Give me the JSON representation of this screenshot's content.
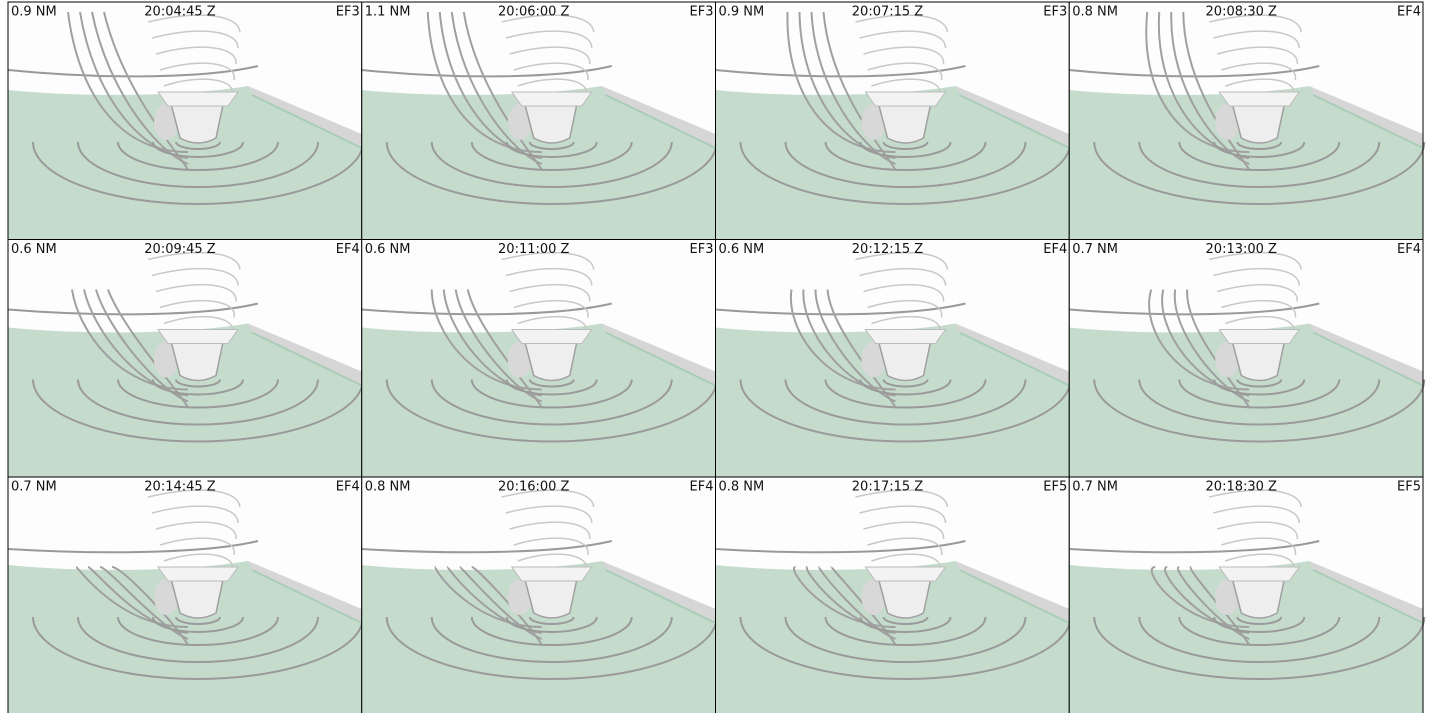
{
  "panels": [
    {
      "distance": "0.9 NM",
      "time": "20:04:45 Z",
      "rating": "EF3"
    },
    {
      "distance": "1.1 NM",
      "time": "20:06:00 Z",
      "rating": "EF3"
    },
    {
      "distance": "0.9 NM",
      "time": "20:07:15 Z",
      "rating": "EF3"
    },
    {
      "distance": "0.8 NM",
      "time": "20:08:30 Z",
      "rating": "EF4"
    },
    {
      "distance": "0.6 NM",
      "time": "20:09:45 Z",
      "rating": "EF4"
    },
    {
      "distance": "0.6 NM",
      "time": "20:11:00 Z",
      "rating": "EF3"
    },
    {
      "distance": "0.6 NM",
      "time": "20:12:15 Z",
      "rating": "EF4"
    },
    {
      "distance": "0.7 NM",
      "time": "20:13:00 Z",
      "rating": "EF4"
    },
    {
      "distance": "0.7 NM",
      "time": "20:14:45 Z",
      "rating": "EF4"
    },
    {
      "distance": "0.8 NM",
      "time": "20:16:00 Z",
      "rating": "EF4"
    },
    {
      "distance": "0.8 NM",
      "time": "20:17:15 Z",
      "rating": "EF5"
    },
    {
      "distance": "0.7 NM",
      "time": "20:18:30 Z",
      "rating": "EF5"
    }
  ]
}
